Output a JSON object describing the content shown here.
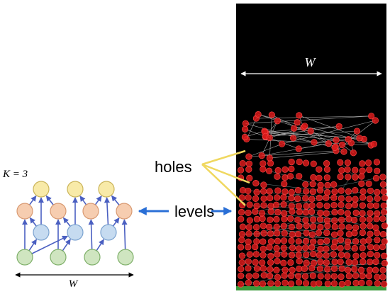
{
  "left_diagram": {
    "k_label": "K = 3",
    "width_label": "W"
  },
  "right_panel": {
    "width_label": "W"
  },
  "annotations": {
    "holes": "holes",
    "levels": "levels"
  }
}
